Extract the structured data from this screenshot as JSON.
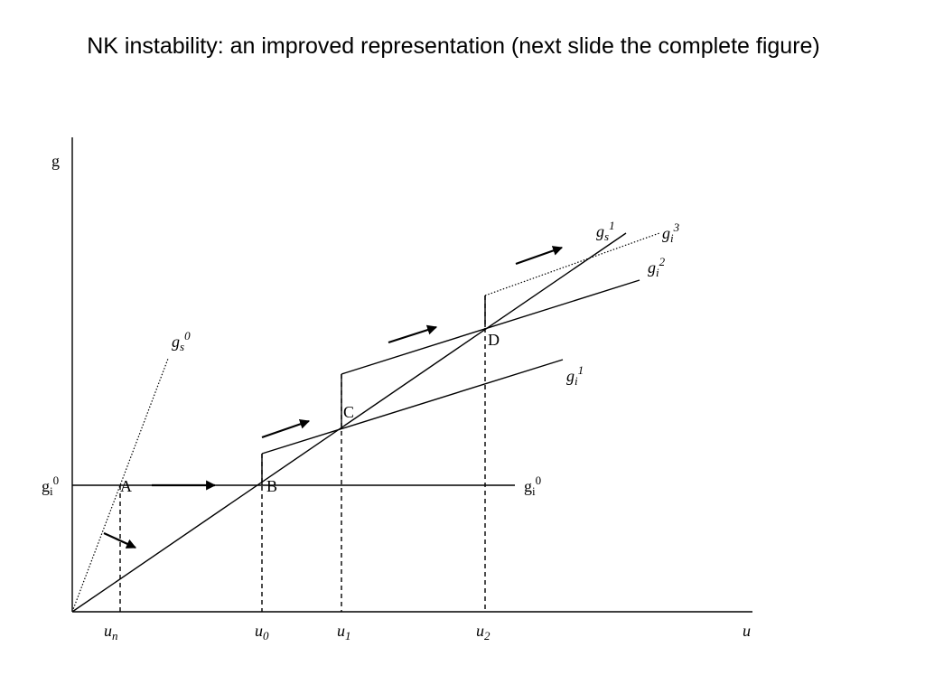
{
  "title": "NK instability: an improved representation (next slide the complete figure)",
  "axes": {
    "y_label": "g",
    "x_label": "u"
  },
  "x_ticks": [
    {
      "base": "u",
      "sub": "n"
    },
    {
      "base": "u",
      "sub": "0"
    },
    {
      "base": "u",
      "sub": "1"
    },
    {
      "base": "u",
      "sub": "2"
    }
  ],
  "points": [
    "A",
    "B",
    "C",
    "D"
  ],
  "curves": [
    {
      "base": "g",
      "sub": "s",
      "sup": "0"
    },
    {
      "base": "g",
      "sub": "s",
      "sup": "1"
    },
    {
      "base": "g",
      "sub": "i",
      "sup": "0"
    },
    {
      "base": "g",
      "sub": "i",
      "sup": "0"
    },
    {
      "base": "g",
      "sub": "i",
      "sup": "1"
    },
    {
      "base": "g",
      "sub": "i",
      "sup": "2"
    },
    {
      "base": "g",
      "sub": "i",
      "sup": "3"
    }
  ]
}
